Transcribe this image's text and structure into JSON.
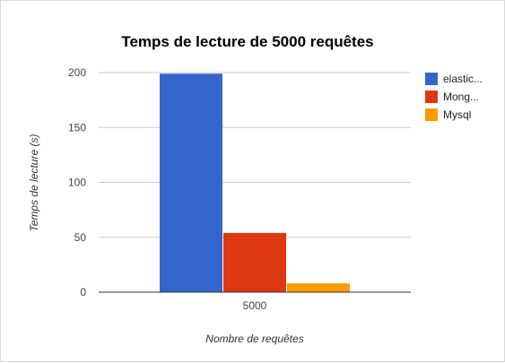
{
  "chart_data": {
    "type": "bar",
    "title": "Temps de lecture de 5000 requêtes",
    "xlabel": "Nombre de requêtes",
    "ylabel": "Temps de lecture (s)",
    "categories": [
      "5000"
    ],
    "ylim": [
      0,
      200
    ],
    "yticks": [
      0,
      50,
      100,
      150,
      200
    ],
    "grid": true,
    "legend_position": "right",
    "series": [
      {
        "name": "elastic...",
        "color": "#3366cc",
        "values": [
          199
        ]
      },
      {
        "name": "Mong...",
        "color": "#dc3912",
        "values": [
          54
        ]
      },
      {
        "name": "Mysql",
        "color": "#ff9900",
        "values": [
          8
        ]
      }
    ]
  }
}
